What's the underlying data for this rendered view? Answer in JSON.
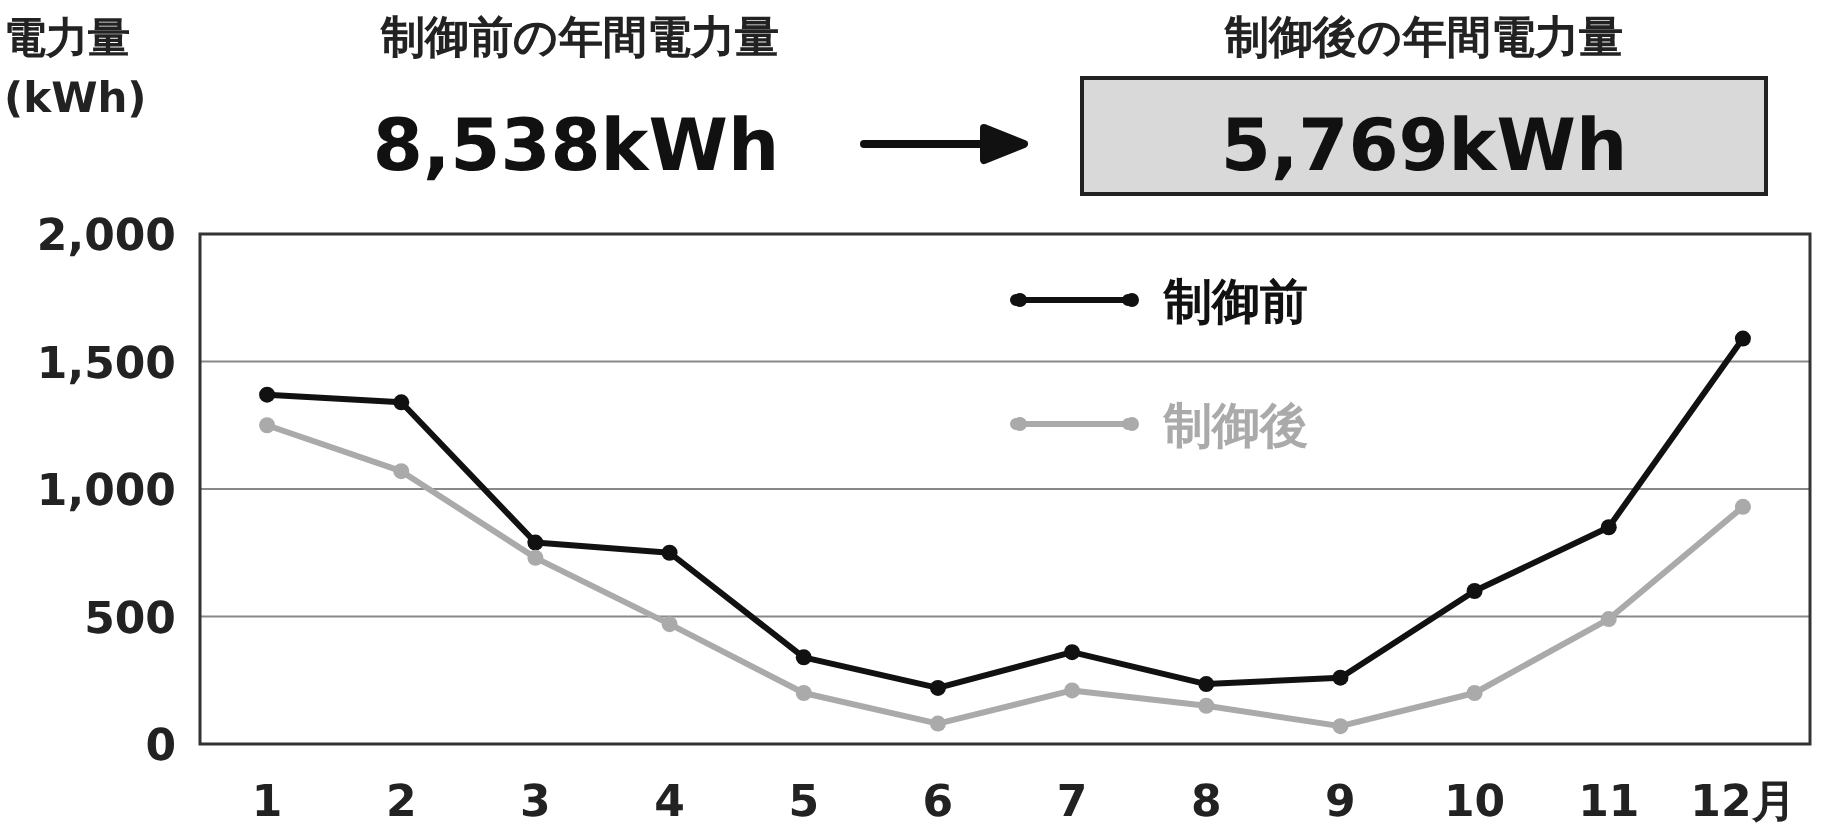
{
  "chart_data": {
    "type": "line",
    "ylabel": "電力量(kWh)",
    "annotations": [
      "制御前の年間電力量",
      "8,538kWh",
      "制御後の年間電力量",
      "5,769kWh"
    ],
    "categories": [
      "1",
      "2",
      "3",
      "4",
      "5",
      "6",
      "7",
      "8",
      "9",
      "10",
      "11",
      "12月"
    ],
    "series": [
      {
        "name": "制御前",
        "color": "#111111",
        "values": [
          1370,
          1340,
          790,
          750,
          340,
          220,
          360,
          235,
          260,
          600,
          850,
          1590
        ]
      },
      {
        "name": "制御後",
        "color": "#aaaaaa",
        "values": [
          1250,
          1070,
          730,
          470,
          200,
          80,
          210,
          150,
          70,
          200,
          490,
          930
        ]
      }
    ],
    "ylim": [
      0,
      2000
    ],
    "yticks": [
      0,
      {
        "value": 500,
        "label": "500"
      },
      {
        "value": 1000,
        "label": "1,000"
      },
      {
        "value": 1500,
        "label": "1,500"
      },
      {
        "value": 2000,
        "label": "2,000"
      }
    ],
    "grid": "y",
    "legend": "top",
    "marker": "circle",
    "line_style": "solid"
  }
}
